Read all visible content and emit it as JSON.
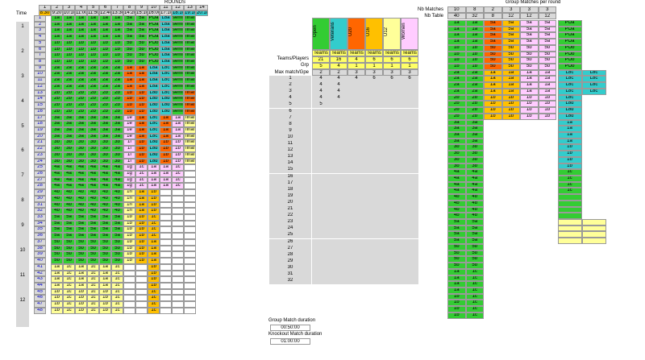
{
  "left": {
    "rounds_label": "ROUNDS",
    "round_numbers": [
      "1",
      "2",
      "3",
      "4",
      "5",
      "6",
      "7",
      "8",
      "9",
      "10",
      "11",
      "12",
      "13",
      "14"
    ],
    "time_label": "Time",
    "times": [
      "8:30",
      "9:20",
      "10:10",
      "11:00",
      "11:50",
      "12:40",
      "13:30",
      "14:20",
      "15:10",
      "16:00",
      "17:10",
      "18:10",
      "19:10",
      "20:10"
    ],
    "groups": [
      "1",
      "2",
      "3",
      "4",
      "5",
      "6",
      "7",
      "8",
      "9",
      "10",
      "11",
      "12"
    ],
    "rows": [
      [
        "1",
        "1a",
        "1a",
        "1a",
        "1a",
        "1a",
        "1a",
        "5a",
        "5a",
        "POa",
        "L8a",
        "semif a",
        "final"
      ],
      [
        "2",
        "1a",
        "1a",
        "1a",
        "1a",
        "1a",
        "1a",
        "5a",
        "5a",
        "POa",
        "L8a",
        "semif a",
        "final"
      ],
      [
        "3",
        "1a",
        "1a",
        "1a",
        "1a",
        "1a",
        "1a",
        "5a",
        "5a",
        "POa",
        "L8a",
        "semif a",
        "final"
      ],
      [
        "4",
        "1a",
        "1a",
        "1a",
        "1a",
        "1a",
        "1a",
        "5a",
        "5a",
        "POa",
        "L8a",
        "semif a",
        "final"
      ],
      [
        "5",
        "1b",
        "1b",
        "1b",
        "1b",
        "1b",
        "1b",
        "5b",
        "5b",
        "POb",
        "L8a",
        "semif a",
        "final"
      ],
      [
        "6",
        "1b",
        "1b",
        "1b",
        "1b",
        "1b",
        "1b",
        "5b",
        "5b",
        "POb",
        "L8a",
        "semif a",
        "final"
      ],
      [
        "7",
        "1b",
        "1b",
        "1b",
        "1b",
        "1b",
        "1b",
        "5b",
        "5b",
        "POb",
        "L8a",
        "semif a",
        "final"
      ],
      [
        "8",
        "1b",
        "1b",
        "1b",
        "1b",
        "1b",
        "1b",
        "5b",
        "5b",
        "POb",
        "L8a",
        "semif a",
        "final"
      ],
      [
        "9",
        "2a",
        "2a",
        "2a",
        "2a",
        "2a",
        "2a",
        "1a",
        "1a",
        "L8a",
        "L8c",
        "semif a",
        "final"
      ],
      [
        "10",
        "2a",
        "2a",
        "2a",
        "2a",
        "2a",
        "2a",
        "1a",
        "1a",
        "L8a",
        "L8c",
        "semif a",
        "final"
      ],
      [
        "11",
        "2a",
        "2a",
        "2a",
        "2a",
        "2a",
        "2a",
        "1a",
        "1a",
        "L8a",
        "L8c",
        "semif a",
        "final"
      ],
      [
        "12",
        "2a",
        "2a",
        "2a",
        "2a",
        "2a",
        "2a",
        "1a",
        "1a",
        "L8a",
        "L8c",
        "semif a",
        "final"
      ],
      [
        "13",
        "2b",
        "2b",
        "2b",
        "2b",
        "2b",
        "2b",
        "1b",
        "1b",
        "L8b",
        "L8c",
        "semif b",
        "final"
      ],
      [
        "14",
        "2b",
        "2b",
        "2b",
        "2b",
        "2b",
        "2b",
        "1b",
        "1b",
        "L8b",
        "L8d",
        "semif b",
        "final"
      ],
      [
        "15",
        "2b",
        "2b",
        "2b",
        "2b",
        "2b",
        "2b",
        "1b",
        "1b",
        "L8b",
        "L8d",
        "semif b",
        "final"
      ],
      [
        "16",
        "2b",
        "2b",
        "2b",
        "2b",
        "2b",
        "2b",
        "1b",
        "1b",
        "L8b",
        "L8d",
        "semif b",
        "final"
      ],
      [
        "17",
        "3a",
        "3a",
        "3a",
        "3a",
        "3a",
        "3a",
        "1e",
        "1a",
        "L8c",
        "1a",
        "1a",
        "final"
      ],
      [
        "18",
        "3a",
        "3a",
        "3a",
        "3a",
        "3a",
        "3a",
        "1e",
        "1a",
        "L8c",
        "1a",
        "1a",
        "final"
      ],
      [
        "19",
        "3a",
        "3a",
        "3a",
        "3a",
        "3a",
        "3a",
        "1e",
        "1a",
        "L8c",
        "1a",
        "1a",
        "final"
      ],
      [
        "20",
        "3a",
        "3a",
        "3a",
        "3a",
        "3a",
        "3a",
        "1e",
        "1a",
        "L8c",
        "1a",
        "1a",
        "final"
      ],
      [
        "21",
        "3b",
        "3b",
        "3b",
        "3b",
        "3b",
        "3b",
        "1f",
        "1b",
        "L8d",
        "1b",
        "1b",
        "final"
      ],
      [
        "22",
        "3b",
        "3b",
        "3b",
        "3b",
        "3b",
        "3b",
        "1f",
        "1b",
        "L8d",
        "1b",
        "1b",
        "final"
      ],
      [
        "23",
        "3b",
        "3b",
        "3b",
        "3b",
        "3b",
        "3b",
        "1f",
        "1b",
        "L8d",
        "1b",
        "1b",
        "final"
      ],
      [
        "24",
        "3b",
        "3b",
        "3b",
        "3b",
        "3b",
        "3b",
        "1f",
        "1b",
        "L8d",
        "1b",
        "1b",
        "final"
      ],
      [
        "25",
        "4a",
        "4a",
        "4a",
        "4a",
        "4a",
        "4a",
        "1g",
        "1c",
        "1a",
        "1a",
        "1c",
        ""
      ],
      [
        "26",
        "4a",
        "4a",
        "4a",
        "4a",
        "4a",
        "4a",
        "1g",
        "1c",
        "1a",
        "1a",
        "1c",
        ""
      ],
      [
        "27",
        "4a",
        "4a",
        "4a",
        "4a",
        "4a",
        "4a",
        "1g",
        "1c",
        "1a",
        "1a",
        "1c",
        ""
      ],
      [
        "28",
        "4a",
        "4a",
        "4a",
        "4a",
        "4a",
        "4a",
        "1g",
        "1c",
        "1a",
        "1a",
        "1c",
        ""
      ],
      [
        "29",
        "4b",
        "4b",
        "4b",
        "4b",
        "4b",
        "4b",
        "1h",
        "1a",
        "1b",
        "",
        "",
        ""
      ],
      [
        "30",
        "4b",
        "4b",
        "4b",
        "4b",
        "4b",
        "4b",
        "1h",
        "1a",
        "1b",
        "",
        "",
        ""
      ],
      [
        "31",
        "4b",
        "4b",
        "4b",
        "4b",
        "4b",
        "4b",
        "1h",
        "1a",
        "1b",
        "",
        "",
        ""
      ],
      [
        "32",
        "4b",
        "4b",
        "4b",
        "4b",
        "4b",
        "4b",
        "1h",
        "1a",
        "1b",
        "",
        "",
        ""
      ],
      [
        "33",
        "5a",
        "5a",
        "5a",
        "5a",
        "5a",
        "5a",
        "1b",
        "1b",
        "1c",
        "",
        "",
        ""
      ],
      [
        "34",
        "5a",
        "5a",
        "5a",
        "5a",
        "5a",
        "5a",
        "1b",
        "1b",
        "1c",
        "",
        "",
        ""
      ],
      [
        "35",
        "5a",
        "5a",
        "5a",
        "5a",
        "5a",
        "5a",
        "1b",
        "1b",
        "1c",
        "",
        "",
        ""
      ],
      [
        "36",
        "5a",
        "5a",
        "5a",
        "5a",
        "5a",
        "5a",
        "1b",
        "1b",
        "1c",
        "",
        "",
        ""
      ],
      [
        "37",
        "5b",
        "5b",
        "5b",
        "5b",
        "5b",
        "5b",
        "1b",
        "1b",
        "1a",
        "",
        "",
        ""
      ],
      [
        "38",
        "5b",
        "5b",
        "5b",
        "5b",
        "5b",
        "5b",
        "1b",
        "1b",
        "1a",
        "",
        "",
        ""
      ],
      [
        "39",
        "5b",
        "5b",
        "5b",
        "5b",
        "5b",
        "5b",
        "1b",
        "1b",
        "1a",
        "",
        "",
        ""
      ],
      [
        "40",
        "5b",
        "5b",
        "5b",
        "5b",
        "5b",
        "5b",
        "1b",
        "1b",
        "1a",
        "",
        "",
        ""
      ],
      [
        "41",
        "1a",
        "1c",
        "1a",
        "1c",
        "1a",
        "1c",
        "",
        "",
        "1b",
        "",
        "",
        ""
      ],
      [
        "42",
        "1a",
        "1c",
        "1a",
        "1c",
        "1a",
        "1c",
        "",
        "",
        "1b",
        "",
        "",
        ""
      ],
      [
        "43",
        "1a",
        "1c",
        "1a",
        "1c",
        "1a",
        "1c",
        "",
        "",
        "1b",
        "",
        "",
        ""
      ],
      [
        "44",
        "1a",
        "1c",
        "1a",
        "1c",
        "1a",
        "1c",
        "",
        "",
        "1b",
        "",
        "",
        ""
      ],
      [
        "45",
        "1b",
        "1c",
        "1b",
        "1c",
        "1b",
        "1c",
        "",
        "",
        "1c",
        "",
        "",
        ""
      ],
      [
        "46",
        "1b",
        "1c",
        "1b",
        "1c",
        "1b",
        "1c",
        "",
        "",
        "1c",
        "",
        "",
        ""
      ],
      [
        "47",
        "1b",
        "1c",
        "1b",
        "1c",
        "1b",
        "1c",
        "",
        "",
        "1c",
        "",
        "",
        ""
      ],
      [
        "48",
        "1b",
        "1c",
        "1b",
        "1c",
        "1b",
        "1c",
        "",
        "",
        "1c",
        "",
        "",
        ""
      ]
    ]
  },
  "legend": {
    "categories": [
      {
        "name": "Open",
        "color": "#33cc33"
      },
      {
        "name": "Veterans",
        "color": "#33cccc"
      },
      {
        "name": "U20",
        "color": "#ff6600"
      },
      {
        "name": "U16",
        "color": "#ffc000"
      },
      {
        "name": "U12",
        "color": "#ffff99"
      },
      {
        "name": "Women",
        "color": "#ffccff"
      }
    ],
    "teams_players_label": "Teams/Players",
    "grp_label": "Grp",
    "max_label": "Max match/Gpe",
    "unit_row": [
      "Teams",
      "Teams",
      "Teams",
      "Teams",
      "Teams",
      "Teams"
    ],
    "teams_players": [
      "21",
      "16",
      "4",
      "6",
      "6",
      "6"
    ],
    "grp": [
      "5",
      "4",
      "1",
      "1",
      "1",
      "1"
    ],
    "max": [
      "2",
      "2",
      "3",
      "3",
      "3",
      "3"
    ]
  },
  "mid_table": {
    "rows": [
      [
        "1",
        "4",
        "4",
        "4",
        "6",
        "6",
        "6"
      ],
      [
        "2",
        "4",
        "4",
        "",
        "",
        "",
        ""
      ],
      [
        "3",
        "4",
        "4",
        "",
        "",
        "",
        ""
      ],
      [
        "4",
        "4",
        "4",
        "",
        "",
        "",
        ""
      ],
      [
        "5",
        "5",
        "",
        "",
        "",
        "",
        ""
      ],
      [
        "6",
        "",
        "",
        "",
        "",
        "",
        ""
      ],
      [
        "7",
        "",
        "",
        "",
        "",
        "",
        ""
      ],
      [
        "8",
        "",
        "",
        "",
        "",
        "",
        ""
      ],
      [
        "9",
        "",
        "",
        "",
        "",
        "",
        ""
      ],
      [
        "10",
        "",
        "",
        "",
        "",
        "",
        ""
      ],
      [
        "11",
        "",
        "",
        "",
        "",
        "",
        ""
      ],
      [
        "12",
        "",
        "",
        "",
        "",
        "",
        ""
      ],
      [
        "13",
        "",
        "",
        "",
        "",
        "",
        ""
      ],
      [
        "14",
        "",
        "",
        "",
        "",
        "",
        ""
      ],
      [
        "15",
        "",
        "",
        "",
        "",
        "",
        ""
      ],
      [
        "16",
        "",
        "",
        "",
        "",
        "",
        ""
      ],
      [
        "17",
        "",
        "",
        "",
        "",
        "",
        ""
      ],
      [
        "18",
        "",
        "",
        "",
        "",
        "",
        ""
      ],
      [
        "19",
        "",
        "",
        "",
        "",
        "",
        ""
      ],
      [
        "20",
        "",
        "",
        "",
        "",
        "",
        ""
      ],
      [
        "21",
        "",
        "",
        "",
        "",
        "",
        ""
      ],
      [
        "22",
        "",
        "",
        "",
        "",
        "",
        ""
      ],
      [
        "23",
        "",
        "",
        "",
        "",
        "",
        ""
      ],
      [
        "24",
        "",
        "",
        "",
        "",
        "",
        ""
      ],
      [
        "25",
        "",
        "",
        "",
        "",
        "",
        ""
      ],
      [
        "26",
        "",
        "",
        "",
        "",
        "",
        ""
      ],
      [
        "27",
        "",
        "",
        "",
        "",
        "",
        ""
      ],
      [
        "28",
        "",
        "",
        "",
        "",
        "",
        ""
      ],
      [
        "29",
        "",
        "",
        "",
        "",
        "",
        ""
      ],
      [
        "30",
        "",
        "",
        "",
        "",
        "",
        ""
      ],
      [
        "31",
        "",
        "",
        "",
        "",
        "",
        ""
      ],
      [
        "32",
        "",
        "",
        "",
        "",
        "",
        ""
      ]
    ]
  },
  "durations": {
    "group_label": "Group Match duration",
    "group_value": "00:50:00",
    "ko_label": "Knockout Match duration",
    "ko_value": "01:00:00"
  },
  "right": {
    "title": "Group Matches per round",
    "nb_matches_label": "Nb Matches",
    "nb_table_label": "Nb Table",
    "cols": [
      "1",
      "2",
      "3"
    ],
    "nb_matches": [
      "10",
      "8",
      "2",
      "3",
      "3",
      "3"
    ],
    "nb_table": [
      "40",
      "32",
      "8",
      "12",
      "12",
      "12"
    ]
  }
}
